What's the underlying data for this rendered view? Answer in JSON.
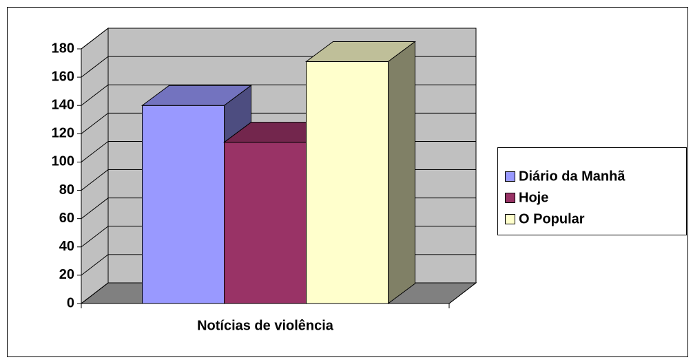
{
  "chart_data": {
    "type": "bar3d",
    "categories": [
      "Notícias de violência"
    ],
    "series": [
      {
        "name": "Diário da Manhã",
        "color": "#9999ff",
        "values": [
          140
        ]
      },
      {
        "name": "Hoje",
        "color": "#993366",
        "values": [
          114
        ]
      },
      {
        "name": "O Popular",
        "color": "#ffffcc",
        "values": [
          171
        ]
      }
    ],
    "ylim": [
      0,
      180
    ],
    "yticks": [
      0,
      20,
      40,
      60,
      80,
      100,
      120,
      140,
      160,
      180
    ],
    "grid": true,
    "legend": "right"
  }
}
